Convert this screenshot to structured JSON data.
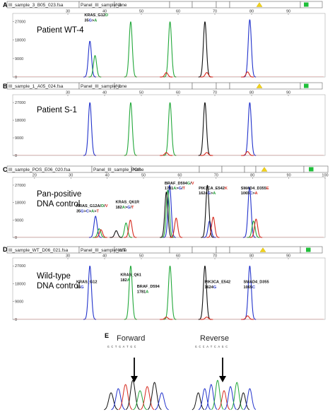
{
  "colors": {
    "blue": "#2233cc",
    "green": "#22a83a",
    "black": "#111111",
    "red": "#d62a1e",
    "yellow": "#f2d21a",
    "bright_green": "#1fbf3a",
    "mut_green": "#1c9a33",
    "mut_red": "#d62a1e",
    "mut_blue": "#2233cc"
  },
  "chart_data": [
    {
      "type": "line",
      "label": "A",
      "title_lines": [
        "Patient WT-4"
      ],
      "header": [
        "III_sample_3_B05_023.fsa",
        "Panel_III_sample_3",
        "None"
      ],
      "x_ticks": [
        "30",
        "40",
        "50",
        "60",
        "70",
        "80",
        "90"
      ],
      "y_ticks": [
        "27000",
        "18000",
        "9000",
        "0"
      ],
      "ylim": [
        0,
        31000
      ],
      "series": [
        {
          "color": "blue",
          "peaks": [
            {
              "x": 36,
              "y": 17500
            },
            {
              "x": 79.5,
              "y": 28000
            }
          ]
        },
        {
          "color": "green",
          "peaks": [
            {
              "x": 37.4,
              "y": 10500
            },
            {
              "x": 47.1,
              "y": 27000
            },
            {
              "x": 57.8,
              "y": 27000
            }
          ]
        },
        {
          "color": "black",
          "peaks": [
            {
              "x": 67.3,
              "y": 27000
            }
          ]
        },
        {
          "color": "red",
          "peaks": [
            {
              "x": 56.8,
              "y": 2200
            },
            {
              "x": 67.8,
              "y": 2200
            },
            {
              "x": 78.9,
              "y": 2500
            }
          ]
        }
      ],
      "annotations": [
        {
          "x": 34.5,
          "y": 29600,
          "parts": [
            [
              "KRAS_G12",
              "black"
            ],
            [
              "D",
              "mut_green"
            ]
          ]
        },
        {
          "x": 34.5,
          "y": 27100,
          "parts": [
            [
              "35",
              "black"
            ],
            [
              "G",
              "mut_blue"
            ],
            [
              ">",
              "black"
            ],
            [
              "A",
              "mut_green"
            ]
          ]
        }
      ]
    },
    {
      "type": "line",
      "label": "B",
      "title_lines": [
        "Patient S-1"
      ],
      "header": [
        "III_sample_1_A05_024.fsa",
        "Panel_III_sample_1",
        "None"
      ],
      "x_ticks": [
        "30",
        "40",
        "50",
        "60",
        "70",
        "80",
        "90"
      ],
      "y_ticks": [
        "27000",
        "18000",
        "9000",
        "0"
      ],
      "ylim": [
        0,
        31000
      ],
      "series": [
        {
          "color": "blue",
          "peaks": [
            {
              "x": 36,
              "y": 27000
            },
            {
              "x": 79.5,
              "y": 27000
            }
          ]
        },
        {
          "color": "green",
          "peaks": [
            {
              "x": 47.1,
              "y": 27000
            },
            {
              "x": 57.8,
              "y": 27000
            }
          ]
        },
        {
          "color": "black",
          "peaks": [
            {
              "x": 67.3,
              "y": 27000
            }
          ]
        },
        {
          "color": "red",
          "peaks": [
            {
              "x": 56.8,
              "y": 1500
            },
            {
              "x": 67.8,
              "y": 1500
            },
            {
              "x": 78.9,
              "y": 2000
            }
          ]
        }
      ],
      "annotations": []
    },
    {
      "type": "line",
      "label": "C",
      "title_lines": [
        "Pan-positive",
        "DNA control"
      ],
      "header": [
        "III_sample_POS_E06_020.fsa",
        "Panel_III_sample_POS",
        "None"
      ],
      "x_ticks": [
        "20",
        "30",
        "40",
        "50",
        "60",
        "70",
        "80",
        "90",
        "100"
      ],
      "y_ticks": [
        "27000",
        "18000",
        "9000",
        "0"
      ],
      "ylim": [
        0,
        31000
      ],
      "series": [
        {
          "color": "blue",
          "peaks": [
            {
              "x": 36.8,
              "y": 11000
            },
            {
              "x": 57.2,
              "y": 27000
            },
            {
              "x": 68.2,
              "y": 8500
            },
            {
              "x": 79.2,
              "y": 26000
            }
          ]
        },
        {
          "color": "green",
          "peaks": [
            {
              "x": 37.8,
              "y": 4500
            },
            {
              "x": 45.2,
              "y": 7500
            },
            {
              "x": 56.7,
              "y": 24500
            },
            {
              "x": 80.3,
              "y": 8500
            }
          ]
        },
        {
          "color": "black",
          "peaks": [
            {
              "x": 56.3,
              "y": 23500
            },
            {
              "x": 67.6,
              "y": 27000
            },
            {
              "x": 42.5,
              "y": 3500
            }
          ]
        },
        {
          "color": "red",
          "peaks": [
            {
              "x": 38.3,
              "y": 4000
            },
            {
              "x": 46.4,
              "y": 9000
            },
            {
              "x": 59,
              "y": 10000
            },
            {
              "x": 69.2,
              "y": 10500
            },
            {
              "x": 81,
              "y": 9500
            }
          ]
        }
      ],
      "annotations": [
        {
          "x": 31.5,
          "y": 15600,
          "parts": [
            [
              "KRAS_G12A/",
              "black"
            ],
            [
              "D",
              "mut_green"
            ],
            [
              "/",
              "black"
            ],
            [
              "V",
              "mut_red"
            ]
          ]
        },
        {
          "x": 31.5,
          "y": 13000,
          "parts": [
            [
              "35",
              "black"
            ],
            [
              "G",
              "mut_blue"
            ],
            [
              ">",
              "black"
            ],
            [
              "C",
              "mut_blue"
            ],
            [
              ">",
              "black"
            ],
            [
              "A",
              "mut_green"
            ],
            [
              ">",
              "black"
            ],
            [
              "T",
              "mut_red"
            ]
          ]
        },
        {
          "x": 42.3,
          "y": 17600,
          "parts": [
            [
              "KRAS_Q61R",
              "black"
            ]
          ]
        },
        {
          "x": 42.3,
          "y": 15000,
          "parts": [
            [
              "182",
              "black"
            ],
            [
              "A",
              "mut_green"
            ],
            [
              ">",
              "black"
            ],
            [
              "G",
              "mut_blue"
            ],
            [
              "/",
              "black"
            ],
            [
              "T",
              "mut_red"
            ]
          ]
        },
        {
          "x": 55.8,
          "y": 27400,
          "parts": [
            [
              "BRAF_D594",
              "black"
            ],
            [
              "G",
              "mut_green"
            ],
            [
              "/",
              "black"
            ],
            [
              "V",
              "mut_red"
            ]
          ]
        },
        {
          "x": 55.8,
          "y": 24800,
          "parts": [
            [
              "1781",
              "black"
            ],
            [
              "A",
              "mut_green"
            ],
            [
              ">",
              "black"
            ],
            [
              "G",
              "mut_blue"
            ],
            [
              "/",
              "black"
            ],
            [
              "T",
              "mut_red"
            ]
          ]
        },
        {
          "x": 65.2,
          "y": 24800,
          "parts": [
            [
              "PIK3CA_E542",
              "black"
            ],
            [
              "K",
              "mut_red"
            ]
          ]
        },
        {
          "x": 65.2,
          "y": 22200,
          "parts": [
            [
              "1624",
              "black"
            ],
            [
              "G",
              "mut_blue"
            ],
            [
              ">",
              "black"
            ],
            [
              "A",
              "mut_green"
            ]
          ]
        },
        {
          "x": 76.8,
          "y": 24800,
          "parts": [
            [
              "SMAD4_D355",
              "black"
            ],
            [
              "E",
              "mut_red"
            ]
          ]
        },
        {
          "x": 76.8,
          "y": 22200,
          "parts": [
            [
              "1065",
              "black"
            ],
            [
              "C",
              "mut_blue"
            ],
            [
              ">",
              "black"
            ],
            [
              "A",
              "mut_red"
            ]
          ]
        }
      ]
    },
    {
      "type": "line",
      "label": "D",
      "title_lines": [
        "Wild-type",
        "DNA control"
      ],
      "header": [
        "III_sample_WT_D06_021.fsa",
        "Panel_III_sample_WT",
        "None"
      ],
      "x_ticks": [
        "30",
        "40",
        "50",
        "60",
        "70",
        "80",
        "90"
      ],
      "y_ticks": [
        "27000",
        "18000",
        "9000",
        "0"
      ],
      "ylim": [
        0,
        31000
      ],
      "series": [
        {
          "color": "blue",
          "peaks": [
            {
              "x": 36,
              "y": 27000
            },
            {
              "x": 79.5,
              "y": 27000
            }
          ]
        },
        {
          "color": "green",
          "peaks": [
            {
              "x": 47.1,
              "y": 27000
            },
            {
              "x": 57.8,
              "y": 27000
            }
          ]
        },
        {
          "color": "black",
          "peaks": [
            {
              "x": 67.3,
              "y": 27000
            }
          ]
        },
        {
          "color": "red",
          "peaks": [
            {
              "x": 56.8,
              "y": 1200
            },
            {
              "x": 67.8,
              "y": 1200
            },
            {
              "x": 78.9,
              "y": 1800
            }
          ]
        }
      ],
      "annotations": [
        {
          "x": 32.3,
          "y": 18300,
          "parts": [
            [
              "KRAS_G12",
              "black"
            ]
          ]
        },
        {
          "x": 32.3,
          "y": 15700,
          "parts": [
            [
              "35",
              "black"
            ],
            [
              "G",
              "mut_blue"
            ]
          ]
        },
        {
          "x": 44.3,
          "y": 21900,
          "parts": [
            [
              "KRAS_Q61",
              "black"
            ]
          ]
        },
        {
          "x": 44.3,
          "y": 19300,
          "parts": [
            [
              "182",
              "black"
            ],
            [
              "A",
              "mut_green"
            ]
          ]
        },
        {
          "x": 48.8,
          "y": 16000,
          "parts": [
            [
              "BRAF_D594",
              "black"
            ]
          ]
        },
        {
          "x": 48.8,
          "y": 13400,
          "parts": [
            [
              "1781",
              "black"
            ],
            [
              "A",
              "mut_green"
            ]
          ]
        },
        {
          "x": 67.2,
          "y": 18300,
          "parts": [
            [
              "PIK3CA_E542",
              "black"
            ]
          ]
        },
        {
          "x": 67.2,
          "y": 15700,
          "parts": [
            [
              "1624",
              "black"
            ],
            [
              "G",
              "mut_blue"
            ]
          ]
        },
        {
          "x": 77.8,
          "y": 18300,
          "parts": [
            [
              "SMAD4_D355",
              "black"
            ]
          ]
        },
        {
          "x": 77.8,
          "y": 15700,
          "parts": [
            [
              "1065",
              "black"
            ],
            [
              "C",
              "mut_blue"
            ]
          ]
        }
      ]
    }
  ],
  "panel_e": {
    "label": "E",
    "forward": {
      "title": "Forward",
      "seq": "G C T G A T G C"
    },
    "reverse": {
      "title": "Reverse",
      "seq": "G C C A T C A G C"
    }
  }
}
